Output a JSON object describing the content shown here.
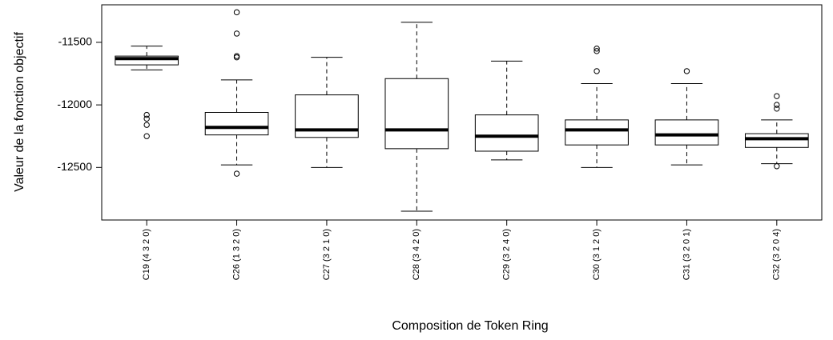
{
  "chart_data": {
    "type": "boxplot",
    "xlabel": "Composition de Token Ring",
    "ylabel": "Valeur de la fonction objectif",
    "ylim": [
      -12920,
      -11200
    ],
    "yticks": [
      -11500,
      -12000,
      -12500
    ],
    "ytick_labels": [
      "-11500",
      "-12000",
      "-12500"
    ],
    "grid": false,
    "series": [
      {
        "category": "C19 (4 3 2 0)",
        "whisker_low": -11720,
        "q1": -11680,
        "median": -11630,
        "q3": -11610,
        "whisker_high": -11530,
        "outliers": [
          -12080,
          -12110,
          -12160,
          -12250
        ]
      },
      {
        "category": "C26 (1 3 2 0)",
        "whisker_low": -12480,
        "q1": -12240,
        "median": -12180,
        "q3": -12060,
        "whisker_high": -11800,
        "outliers": [
          -11260,
          -11430,
          -11610,
          -11620,
          -12550
        ]
      },
      {
        "category": "C27 (3 2 1 0)",
        "whisker_low": -12500,
        "q1": -12260,
        "median": -12200,
        "q3": -11920,
        "whisker_high": -11620,
        "outliers": []
      },
      {
        "category": "C28 (3 4 2 0)",
        "whisker_low": -12850,
        "q1": -12350,
        "median": -12200,
        "q3": -11790,
        "whisker_high": -11340,
        "outliers": []
      },
      {
        "category": "C29 (3 2 4 0)",
        "whisker_low": -12440,
        "q1": -12370,
        "median": -12250,
        "q3": -12080,
        "whisker_high": -11650,
        "outliers": []
      },
      {
        "category": "C30 (3 1 2 0)",
        "whisker_low": -12500,
        "q1": -12320,
        "median": -12200,
        "q3": -12120,
        "whisker_high": -11830,
        "outliers": [
          -11550,
          -11570,
          -11730
        ]
      },
      {
        "category": "C31 (3 2 0 1)",
        "whisker_low": -12480,
        "q1": -12320,
        "median": -12240,
        "q3": -12120,
        "whisker_high": -11830,
        "outliers": [
          -11730
        ]
      },
      {
        "category": "C32 (3 2 0 4)",
        "whisker_low": -12470,
        "q1": -12340,
        "median": -12270,
        "q3": -12230,
        "whisker_high": -12120,
        "outliers": [
          -11930,
          -12000,
          -12030,
          -12490
        ]
      }
    ]
  }
}
